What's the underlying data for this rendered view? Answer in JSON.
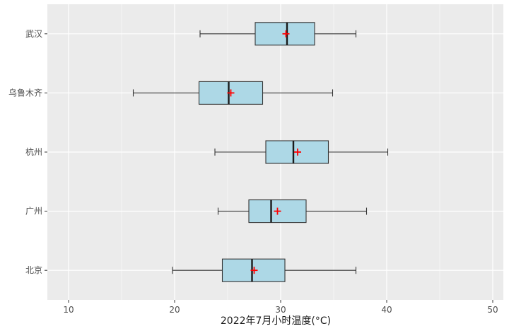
{
  "chart_data": {
    "type": "boxplot",
    "orientation": "horizontal",
    "title": "",
    "xlabel": "2022年7月小时温度(°C)",
    "ylabel": "",
    "xlim": [
      8,
      51
    ],
    "xticks": [
      10,
      20,
      30,
      40,
      50
    ],
    "grid": true,
    "categories": [
      "北京",
      "广州",
      "杭州",
      "乌鲁木齐",
      "武汉"
    ],
    "series": [
      {
        "values": [
          {
            "category": "北京",
            "whisker_low": 19.8,
            "q1": 24.5,
            "median": 27.3,
            "q3": 30.4,
            "whisker_high": 37.1,
            "mean": 27.5
          },
          {
            "category": "广州",
            "whisker_low": 24.1,
            "q1": 27.0,
            "median": 29.1,
            "q3": 32.4,
            "whisker_high": 38.1,
            "mean": 29.7
          },
          {
            "category": "杭州",
            "whisker_low": 23.8,
            "q1": 28.6,
            "median": 31.2,
            "q3": 34.5,
            "whisker_high": 40.1,
            "mean": 31.6
          },
          {
            "category": "乌鲁木齐",
            "whisker_low": 16.1,
            "q1": 22.3,
            "median": 25.1,
            "q3": 28.3,
            "whisker_high": 34.9,
            "mean": 25.3
          },
          {
            "category": "武汉",
            "whisker_low": 22.4,
            "q1": 27.6,
            "median": 30.6,
            "q3": 33.2,
            "whisker_high": 37.1,
            "mean": 30.5
          }
        ]
      }
    ],
    "colors": {
      "panel_background": "#ebebeb",
      "grid_major": "#ffffff",
      "box_fill": "#add8e6",
      "box_stroke": "#333333",
      "mean_marker": "#ff0000"
    }
  }
}
